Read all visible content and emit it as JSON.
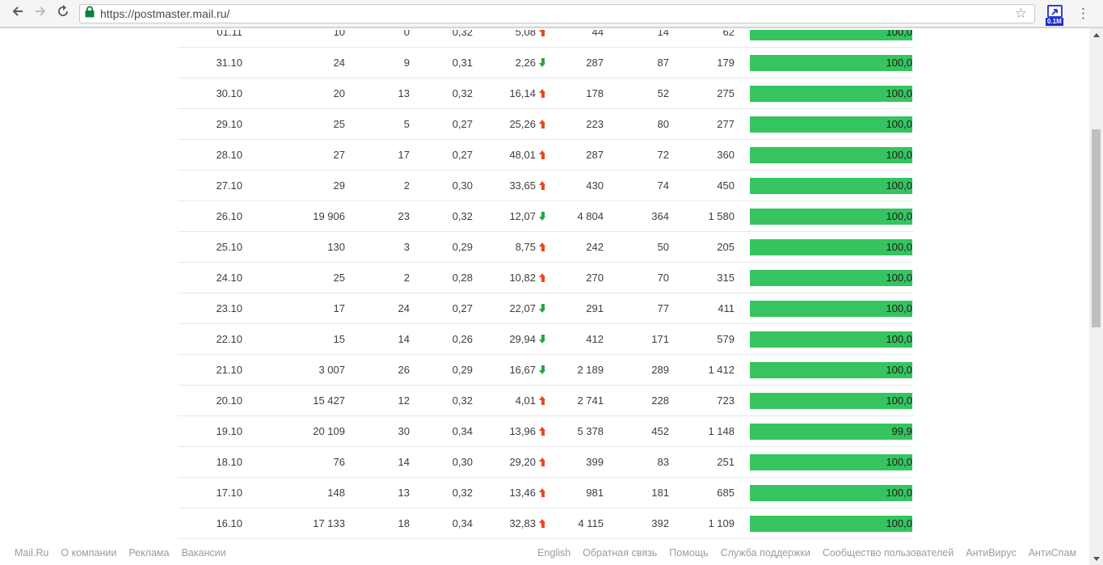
{
  "browser": {
    "url": "https://postmaster.mail.ru/",
    "extension_badge": "0.1M"
  },
  "colors": {
    "bar_green": "#35c45f",
    "arrow_up": "#e8491d",
    "arrow_down": "#28a53f"
  },
  "table": {
    "rows": [
      {
        "date": "01.11",
        "values": [
          "10",
          "0",
          "0,32"
        ],
        "delta": "5,08",
        "trend": "up",
        "counts": [
          "44",
          "14",
          "62"
        ],
        "bar": {
          "label": "100,0",
          "percent": 100
        }
      },
      {
        "date": "31.10",
        "values": [
          "24",
          "9",
          "0,31"
        ],
        "delta": "2,26",
        "trend": "down",
        "counts": [
          "287",
          "87",
          "179"
        ],
        "bar": {
          "label": "100,0",
          "percent": 100
        }
      },
      {
        "date": "30.10",
        "values": [
          "20",
          "13",
          "0,32"
        ],
        "delta": "16,14",
        "trend": "up",
        "counts": [
          "178",
          "52",
          "275"
        ],
        "bar": {
          "label": "100,0",
          "percent": 100
        }
      },
      {
        "date": "29.10",
        "values": [
          "25",
          "5",
          "0,27"
        ],
        "delta": "25,26",
        "trend": "up",
        "counts": [
          "223",
          "80",
          "277"
        ],
        "bar": {
          "label": "100,0",
          "percent": 100
        }
      },
      {
        "date": "28.10",
        "values": [
          "27",
          "17",
          "0,27"
        ],
        "delta": "48,01",
        "trend": "up",
        "counts": [
          "287",
          "72",
          "360"
        ],
        "bar": {
          "label": "100,0",
          "percent": 100
        }
      },
      {
        "date": "27.10",
        "values": [
          "29",
          "2",
          "0,30"
        ],
        "delta": "33,65",
        "trend": "up",
        "counts": [
          "430",
          "74",
          "450"
        ],
        "bar": {
          "label": "100,0",
          "percent": 100
        }
      },
      {
        "date": "26.10",
        "values": [
          "19 906",
          "23",
          "0,32"
        ],
        "delta": "12,07",
        "trend": "down",
        "counts": [
          "4 804",
          "364",
          "1 580"
        ],
        "bar": {
          "label": "100,0",
          "percent": 100
        }
      },
      {
        "date": "25.10",
        "values": [
          "130",
          "3",
          "0,29"
        ],
        "delta": "8,75",
        "trend": "up",
        "counts": [
          "242",
          "50",
          "205"
        ],
        "bar": {
          "label": "100,0",
          "percent": 100
        }
      },
      {
        "date": "24.10",
        "values": [
          "25",
          "2",
          "0,28"
        ],
        "delta": "10,82",
        "trend": "up",
        "counts": [
          "270",
          "70",
          "315"
        ],
        "bar": {
          "label": "100,0",
          "percent": 100
        }
      },
      {
        "date": "23.10",
        "values": [
          "17",
          "24",
          "0,27"
        ],
        "delta": "22,07",
        "trend": "down",
        "counts": [
          "291",
          "77",
          "411"
        ],
        "bar": {
          "label": "100,0",
          "percent": 100
        }
      },
      {
        "date": "22.10",
        "values": [
          "15",
          "14",
          "0,26"
        ],
        "delta": "29,94",
        "trend": "down",
        "counts": [
          "412",
          "171",
          "579"
        ],
        "bar": {
          "label": "100,0",
          "percent": 100
        }
      },
      {
        "date": "21.10",
        "values": [
          "3 007",
          "26",
          "0,29"
        ],
        "delta": "16,67",
        "trend": "down",
        "counts": [
          "2 189",
          "289",
          "1 412"
        ],
        "bar": {
          "label": "100,0",
          "percent": 100
        }
      },
      {
        "date": "20.10",
        "values": [
          "15 427",
          "12",
          "0,32"
        ],
        "delta": "4,01",
        "trend": "up",
        "counts": [
          "2 741",
          "228",
          "723"
        ],
        "bar": {
          "label": "100,0",
          "percent": 100
        }
      },
      {
        "date": "19.10",
        "values": [
          "20 109",
          "30",
          "0,34"
        ],
        "delta": "13,96",
        "trend": "up",
        "counts": [
          "5 378",
          "452",
          "1 148"
        ],
        "bar": {
          "label": "99,9",
          "percent": 99.9
        }
      },
      {
        "date": "18.10",
        "values": [
          "76",
          "14",
          "0,30"
        ],
        "delta": "29,20",
        "trend": "up",
        "counts": [
          "399",
          "83",
          "251"
        ],
        "bar": {
          "label": "100,0",
          "percent": 100
        }
      },
      {
        "date": "17.10",
        "values": [
          "148",
          "13",
          "0,32"
        ],
        "delta": "13,46",
        "trend": "up",
        "counts": [
          "981",
          "181",
          "685"
        ],
        "bar": {
          "label": "100,0",
          "percent": 100
        }
      },
      {
        "date": "16.10",
        "values": [
          "17 133",
          "18",
          "0,34"
        ],
        "delta": "32,83",
        "trend": "up",
        "counts": [
          "4 115",
          "392",
          "1 109"
        ],
        "bar": {
          "label": "100,0",
          "percent": 100
        }
      }
    ]
  },
  "footer": {
    "left_links": [
      "Mail.Ru",
      "О компании",
      "Реклама",
      "Вакансии"
    ],
    "right_links": [
      "English",
      "Обратная связь",
      "Помощь",
      "Служба поддержки",
      "Сообщество пользователей",
      "АнтиВирус",
      "АнтиСпам"
    ]
  }
}
